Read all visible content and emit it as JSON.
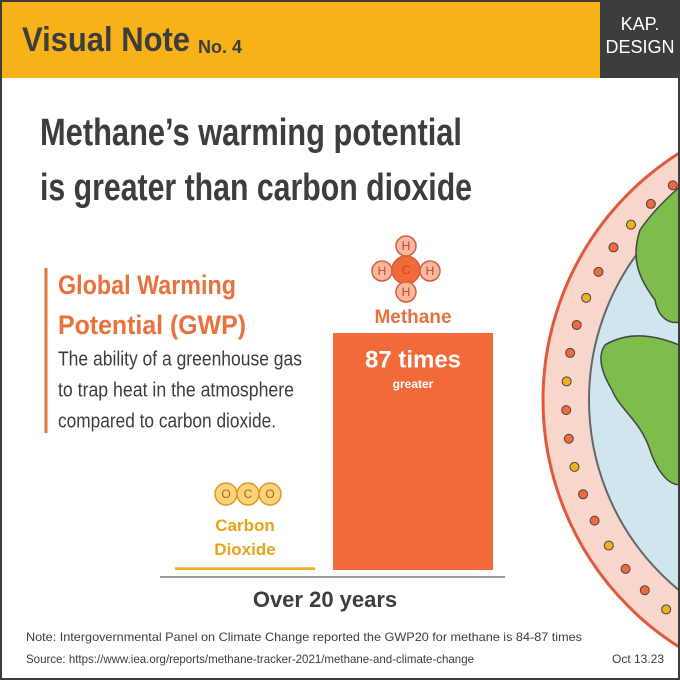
{
  "header": {
    "title": "Visual Note",
    "number": "No. 4",
    "brand": [
      "KAP.",
      "DESIGN"
    ]
  },
  "definition": {
    "heading": [
      "Global Warming",
      "Potential (GWP)"
    ],
    "body": [
      "The ability of a greenhouse gas",
      "to trap heat in the atmosphere",
      "compared to carbon dioxide."
    ]
  },
  "icons": {
    "carbon_dioxide": [
      "O",
      "C",
      "O"
    ],
    "methane": [
      "H",
      "H",
      "C",
      "H",
      "H"
    ]
  },
  "chart_data": {
    "type": "bar",
    "title": [
      "Methane’s warming potential",
      "is greater than carbon dioxide"
    ],
    "categories": [
      "Carbon Dioxide",
      "Methane"
    ],
    "values": [
      1,
      87
    ],
    "value_labels": [
      null,
      "87 times"
    ],
    "annotations": [
      "greater"
    ],
    "colors": [
      "#f2b01e",
      "#f26a3a"
    ],
    "xlabel": "Over 20 years"
  },
  "footer": {
    "note": "Note: Intergovernmental Panel on Climate Change reported the GWP20 for methane is 84-87 times",
    "source": "Source: https://www.iea.org/reports/methane-tracker-2021/methane-and-climate-change",
    "date": "Oct 13.23"
  }
}
